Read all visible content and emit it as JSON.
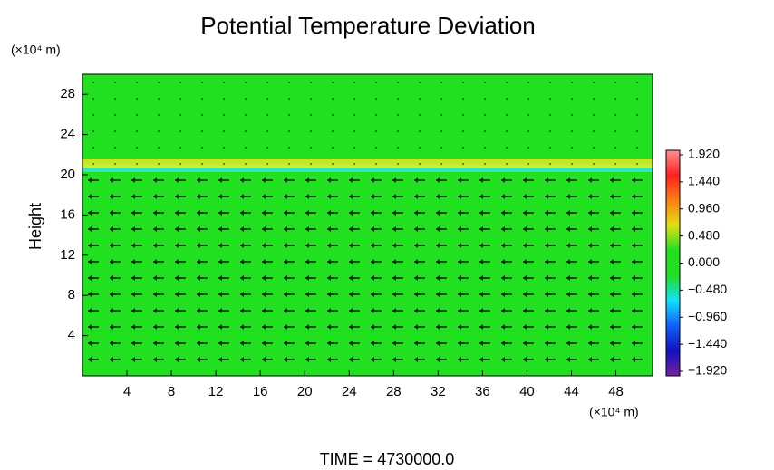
{
  "chart_data": {
    "type": "heatmap",
    "title": "Potential Temperature Deviation",
    "y_label": "Height",
    "y_unit": "(×10⁴ m)",
    "x_unit": "(×10⁴ m)",
    "footer": "TIME  =  4730000.0",
    "xlim": [
      0,
      51.3
    ],
    "xticks": [
      4,
      8,
      12,
      16,
      20,
      24,
      28,
      32,
      36,
      40,
      44,
      48
    ],
    "ylim": [
      0,
      30
    ],
    "yticks": [
      4,
      8,
      12,
      16,
      20,
      24,
      28
    ],
    "colorbar_lim": [
      -2.0,
      2.0
    ],
    "colorbar_ticks": [
      {
        "value": 1.92,
        "label": "1.920"
      },
      {
        "value": 1.44,
        "label": "1.440"
      },
      {
        "value": 0.96,
        "label": "0.960"
      },
      {
        "value": 0.48,
        "label": "0.480"
      },
      {
        "value": 0,
        "label": "0.000"
      },
      {
        "value": -0.48,
        "label": "−0.480"
      },
      {
        "value": -0.96,
        "label": "−0.960"
      },
      {
        "value": -1.44,
        "label": "−1.440"
      },
      {
        "value": -1.92,
        "label": "−1.920"
      }
    ],
    "colormap": [
      "#7a1fa0",
      "#1010c0",
      "#1060ff",
      "#10e0ff",
      "#20e020",
      "#20e020",
      "#e0e010",
      "#ff8010",
      "#ff2020",
      "#ff9090"
    ]
  }
}
